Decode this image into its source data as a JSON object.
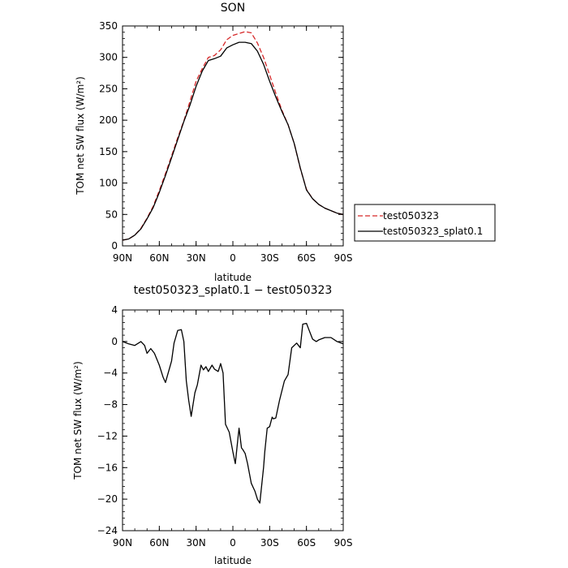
{
  "chart_data": [
    {
      "type": "line",
      "title": "SON",
      "xlabel": "latitude",
      "ylabel": "TOM net SW flux (W/m²)",
      "ylim": [
        0,
        350
      ],
      "yticks": [
        0,
        50,
        100,
        150,
        200,
        250,
        300,
        350
      ],
      "xlim": [
        90,
        -90
      ],
      "xtick_values": [
        90,
        60,
        30,
        0,
        -30,
        -60,
        -90
      ],
      "xtick_labels": [
        "90N",
        "60N",
        "30N",
        "0",
        "30S",
        "60S",
        "90S"
      ],
      "legend": "right",
      "x": [
        90,
        85,
        80,
        75,
        70,
        65,
        60,
        55,
        50,
        45,
        40,
        35,
        30,
        25,
        20,
        15,
        10,
        5,
        0,
        -5,
        -10,
        -15,
        -20,
        -25,
        -30,
        -35,
        -40,
        -45,
        -50,
        -55,
        -60,
        -65,
        -70,
        -75,
        -80,
        -85,
        -90
      ],
      "series": [
        {
          "name": "test050323",
          "color": "#d62728",
          "dash": "dashed",
          "values": [
            9,
            11,
            17,
            28,
            44,
            63,
            88,
            115,
            143,
            172,
            199,
            230,
            262,
            282,
            300,
            303,
            312,
            328,
            335,
            338,
            341,
            339,
            323,
            300,
            272,
            243,
            216,
            193,
            163,
            123,
            90,
            75,
            66,
            60,
            56,
            52,
            50
          ]
        },
        {
          "name": "test050323_splat0.1",
          "color": "#000000",
          "dash": "solid",
          "values": [
            9,
            11,
            17,
            27,
            43,
            61,
            85,
            112,
            140,
            169,
            198,
            224,
            254,
            278,
            295,
            298,
            302,
            315,
            320,
            324,
            324,
            322,
            310,
            289,
            262,
            237,
            214,
            193,
            163,
            124,
            89,
            75,
            66,
            60,
            56,
            52,
            50
          ]
        }
      ]
    },
    {
      "type": "line",
      "title": "test050323_splat0.1 − test050323",
      "xlabel": "latitude",
      "ylabel": "TOM net SW flux (W/m²)",
      "ylim": [
        -24,
        4
      ],
      "yticks": [
        -24,
        -20,
        -16,
        -12,
        -8,
        -4,
        0,
        4
      ],
      "xlim": [
        90,
        -90
      ],
      "xtick_values": [
        90,
        60,
        30,
        0,
        -30,
        -60,
        -90
      ],
      "xtick_labels": [
        "90N",
        "60N",
        "30N",
        "0",
        "30S",
        "60S",
        "90S"
      ],
      "x": [
        90,
        85,
        80,
        75,
        72,
        70,
        67,
        64,
        60,
        57,
        55,
        50,
        48,
        45,
        42,
        40,
        38,
        36,
        34,
        31,
        29,
        26,
        24,
        22,
        20,
        17,
        15,
        12,
        10,
        8,
        6,
        3,
        0,
        -2,
        -4,
        -5,
        -7,
        -8,
        -10,
        -12,
        -15,
        -18,
        -20,
        -22,
        -25,
        -26,
        -28,
        -30,
        -32,
        -33,
        -35,
        -38,
        -42,
        -45,
        -48,
        -52,
        -55,
        -57,
        -60,
        -62,
        -65,
        -68,
        -70,
        -75,
        -80,
        -85,
        -90
      ],
      "series": [
        {
          "name": "",
          "color": "#000000",
          "dash": "solid",
          "values": [
            0,
            -0.3,
            -0.5,
            0,
            -0.5,
            -1.5,
            -0.9,
            -1.5,
            -3,
            -4.5,
            -5.2,
            -2.5,
            -0.2,
            1.4,
            1.5,
            0,
            -5,
            -7.5,
            -9.5,
            -6.5,
            -5.5,
            -3,
            -3.6,
            -3.2,
            -3.8,
            -3,
            -3.5,
            -3.8,
            -2.8,
            -4,
            -10.5,
            -11.5,
            -14,
            -15.5,
            -12.5,
            -11,
            -13.5,
            -13.7,
            -14.2,
            -15.5,
            -18,
            -19,
            -20,
            -20.5,
            -16,
            -14,
            -11,
            -10.8,
            -9.6,
            -9.8,
            -9.7,
            -7.5,
            -5,
            -4.2,
            -0.8,
            -0.2,
            -0.8,
            2.2,
            2.3,
            1.5,
            0.3,
            0,
            0.2,
            0.5,
            0.5,
            0,
            -0.3
          ]
        }
      ]
    }
  ]
}
